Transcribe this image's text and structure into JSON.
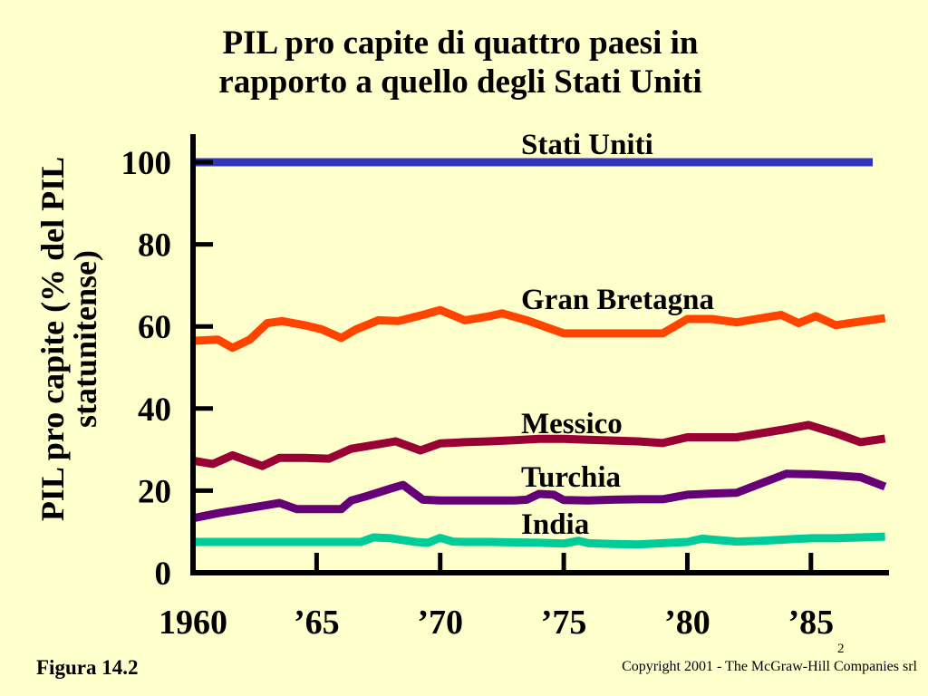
{
  "slide": {
    "title_line1": "PIL pro capite di quattro paesi in",
    "title_line2": "rapporto a quello degli Stati Uniti",
    "figure_label": "Figura 14.2",
    "page_number": "2",
    "copyright": "Copyright 2001 - The McGraw-Hill Companies srl"
  },
  "chart_data": {
    "type": "line",
    "title": "PIL pro capite di quattro paesi in rapporto a quello degli Stati Uniti",
    "ylabel_line1": "PIL pro capite (% del PIL",
    "ylabel_line2": "statunitense)",
    "xlabel": "",
    "xlim": [
      1960,
      1988
    ],
    "ylim": [
      0,
      100
    ],
    "x_ticks": [
      {
        "value": 1960,
        "label": "1960"
      },
      {
        "value": 1965,
        "label": "’65"
      },
      {
        "value": 1970,
        "label": "’70"
      },
      {
        "value": 1975,
        "label": "’75"
      },
      {
        "value": 1980,
        "label": "’80"
      },
      {
        "value": 1985,
        "label": "’85"
      }
    ],
    "y_ticks": [
      0,
      20,
      40,
      60,
      80,
      100
    ],
    "grid": false,
    "legend": "inline labels",
    "series": [
      {
        "name": "Stati Uniti",
        "color": "#3333bb",
        "points": [
          [
            1960,
            100
          ],
          [
            1987.5,
            100
          ]
        ]
      },
      {
        "name": "Gran Bretagna",
        "color": "#ff4400",
        "points": [
          [
            1960,
            56.5
          ],
          [
            1961,
            56.8
          ],
          [
            1961.6,
            54.8
          ],
          [
            1962.3,
            56.8
          ],
          [
            1963,
            60.8
          ],
          [
            1963.6,
            61.3
          ],
          [
            1964.5,
            60.3
          ],
          [
            1965.2,
            59.3
          ],
          [
            1966,
            57.2
          ],
          [
            1966.6,
            59.3
          ],
          [
            1967.5,
            61.5
          ],
          [
            1968.3,
            61.3
          ],
          [
            1969.3,
            62.8
          ],
          [
            1970,
            64
          ],
          [
            1971,
            61.5
          ],
          [
            1972,
            62.5
          ],
          [
            1972.5,
            63.2
          ],
          [
            1973.5,
            61.5
          ],
          [
            1975,
            58.3
          ],
          [
            1976,
            58.3
          ],
          [
            1978,
            58.3
          ],
          [
            1979,
            58.3
          ],
          [
            1980,
            61.8
          ],
          [
            1981,
            61.8
          ],
          [
            1982,
            61
          ],
          [
            1983,
            62
          ],
          [
            1983.8,
            62.8
          ],
          [
            1984.5,
            60.8
          ],
          [
            1985.2,
            62.5
          ],
          [
            1986,
            60.3
          ],
          [
            1987,
            61.2
          ],
          [
            1988,
            62
          ]
        ]
      },
      {
        "name": "Messico",
        "color": "#990033",
        "points": [
          [
            1960,
            27.3
          ],
          [
            1960.8,
            26.5
          ],
          [
            1961.6,
            28.6
          ],
          [
            1962.8,
            26
          ],
          [
            1963.5,
            28
          ],
          [
            1964.5,
            28
          ],
          [
            1965.5,
            27.8
          ],
          [
            1966.4,
            30.2
          ],
          [
            1967.2,
            31
          ],
          [
            1968.2,
            32
          ],
          [
            1969.2,
            29.8
          ],
          [
            1970,
            31.5
          ],
          [
            1971,
            31.8
          ],
          [
            1972,
            32
          ],
          [
            1973,
            32.3
          ],
          [
            1974,
            32.6
          ],
          [
            1975,
            32.6
          ],
          [
            1976,
            32.4
          ],
          [
            1977,
            32.2
          ],
          [
            1978,
            32
          ],
          [
            1979,
            31.6
          ],
          [
            1980,
            33
          ],
          [
            1981,
            33
          ],
          [
            1982,
            33
          ],
          [
            1983,
            34
          ],
          [
            1984,
            35
          ],
          [
            1984.9,
            36
          ],
          [
            1986,
            34
          ],
          [
            1987,
            31.8
          ],
          [
            1988,
            32.7
          ]
        ]
      },
      {
        "name": "Turchia",
        "color": "#660077",
        "points": [
          [
            1960,
            13.3
          ],
          [
            1961,
            14.5
          ],
          [
            1962,
            15.5
          ],
          [
            1963,
            16.5
          ],
          [
            1963.5,
            17
          ],
          [
            1964.2,
            15.5
          ],
          [
            1965,
            15.5
          ],
          [
            1966,
            15.5
          ],
          [
            1966.4,
            17.6
          ],
          [
            1967,
            18.6
          ],
          [
            1968,
            20.5
          ],
          [
            1968.5,
            21.4
          ],
          [
            1969.3,
            17.8
          ],
          [
            1970,
            17.6
          ],
          [
            1971,
            17.6
          ],
          [
            1972,
            17.6
          ],
          [
            1973,
            17.6
          ],
          [
            1973.5,
            17.8
          ],
          [
            1974,
            19.2
          ],
          [
            1974.6,
            19
          ],
          [
            1975,
            17.7
          ],
          [
            1976,
            17.6
          ],
          [
            1977,
            17.8
          ],
          [
            1978,
            17.9
          ],
          [
            1979,
            17.9
          ],
          [
            1980,
            19
          ],
          [
            1981,
            19.3
          ],
          [
            1982,
            19.5
          ],
          [
            1983,
            21.8
          ],
          [
            1984,
            24.1
          ],
          [
            1985,
            24
          ],
          [
            1986,
            23.7
          ],
          [
            1987,
            23.3
          ],
          [
            1988,
            21
          ]
        ]
      },
      {
        "name": "India",
        "color": "#00cc99",
        "points": [
          [
            1960,
            7.5
          ],
          [
            1961,
            7.5
          ],
          [
            1962,
            7.5
          ],
          [
            1963,
            7.5
          ],
          [
            1964,
            7.5
          ],
          [
            1965,
            7.5
          ],
          [
            1966,
            7.5
          ],
          [
            1966.8,
            7.5
          ],
          [
            1967.3,
            8.6
          ],
          [
            1968,
            8.4
          ],
          [
            1969,
            7.5
          ],
          [
            1969.5,
            7.3
          ],
          [
            1970,
            8.5
          ],
          [
            1970.5,
            7.6
          ],
          [
            1971,
            7.5
          ],
          [
            1972,
            7.5
          ],
          [
            1973,
            7.4
          ],
          [
            1974,
            7.3
          ],
          [
            1975,
            7.1
          ],
          [
            1975.6,
            7.8
          ],
          [
            1976,
            7.2
          ],
          [
            1977,
            7
          ],
          [
            1978,
            6.9
          ],
          [
            1979,
            7.2
          ],
          [
            1980,
            7.5
          ],
          [
            1980.6,
            8.3
          ],
          [
            1981,
            8.1
          ],
          [
            1982,
            7.6
          ],
          [
            1983,
            7.8
          ],
          [
            1984,
            8.1
          ],
          [
            1985,
            8.4
          ],
          [
            1986,
            8.4
          ],
          [
            1987,
            8.6
          ],
          [
            1988,
            8.8
          ]
        ]
      }
    ]
  }
}
